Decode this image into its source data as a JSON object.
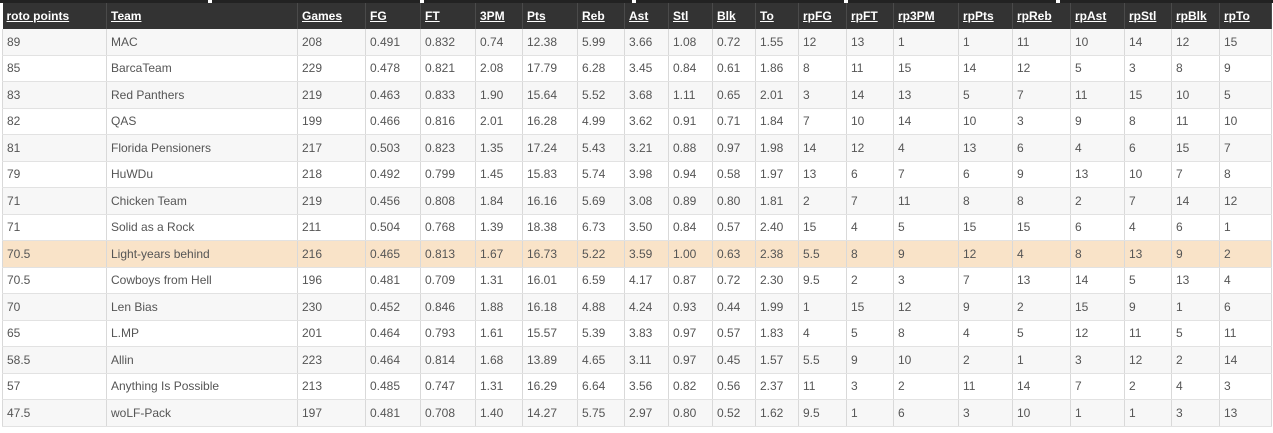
{
  "columns": [
    "roto points",
    "Team",
    "Games",
    "FG",
    "FT",
    "3PM",
    "Pts",
    "Reb",
    "Ast",
    "Stl",
    "Blk",
    "To",
    "rpFG",
    "rpFT",
    "rp3PM",
    "rpPts",
    "rpReb",
    "rpAst",
    "rpStl",
    "rpBlk",
    "rpTo"
  ],
  "rows": [
    [
      "89",
      "MAC",
      "208",
      "0.491",
      "0.832",
      "0.74",
      "12.38",
      "5.99",
      "3.66",
      "1.08",
      "0.72",
      "1.55",
      "12",
      "13",
      "1",
      "1",
      "11",
      "10",
      "14",
      "12",
      "15"
    ],
    [
      "85",
      "BarcaTeam",
      "229",
      "0.478",
      "0.821",
      "2.08",
      "17.79",
      "6.28",
      "3.45",
      "0.84",
      "0.61",
      "1.86",
      "8",
      "11",
      "15",
      "14",
      "12",
      "5",
      "3",
      "8",
      "9"
    ],
    [
      "83",
      "Red Panthers",
      "219",
      "0.463",
      "0.833",
      "1.90",
      "15.64",
      "5.52",
      "3.68",
      "1.11",
      "0.65",
      "2.01",
      "3",
      "14",
      "13",
      "5",
      "7",
      "11",
      "15",
      "10",
      "5"
    ],
    [
      "82",
      "QAS",
      "199",
      "0.466",
      "0.816",
      "2.01",
      "16.28",
      "4.99",
      "3.62",
      "0.91",
      "0.71",
      "1.84",
      "7",
      "10",
      "14",
      "10",
      "3",
      "9",
      "8",
      "11",
      "10"
    ],
    [
      "81",
      "Florida Pensioners",
      "217",
      "0.503",
      "0.823",
      "1.35",
      "17.24",
      "5.43",
      "3.21",
      "0.88",
      "0.97",
      "1.98",
      "14",
      "12",
      "4",
      "13",
      "6",
      "4",
      "6",
      "15",
      "7"
    ],
    [
      "79",
      "HuWDu",
      "218",
      "0.492",
      "0.799",
      "1.45",
      "15.83",
      "5.74",
      "3.98",
      "0.94",
      "0.58",
      "1.97",
      "13",
      "6",
      "7",
      "6",
      "9",
      "13",
      "10",
      "7",
      "8"
    ],
    [
      "71",
      "Chicken Team",
      "219",
      "0.456",
      "0.808",
      "1.84",
      "16.16",
      "5.69",
      "3.08",
      "0.89",
      "0.80",
      "1.81",
      "2",
      "7",
      "11",
      "8",
      "8",
      "2",
      "7",
      "14",
      "12"
    ],
    [
      "71",
      "Solid as a Rock",
      "211",
      "0.504",
      "0.768",
      "1.39",
      "18.38",
      "6.73",
      "3.50",
      "0.84",
      "0.57",
      "2.40",
      "15",
      "4",
      "5",
      "15",
      "15",
      "6",
      "4",
      "6",
      "1"
    ],
    [
      "70.5",
      "Light-years behind",
      "216",
      "0.465",
      "0.813",
      "1.67",
      "16.73",
      "5.22",
      "3.59",
      "1.00",
      "0.63",
      "2.38",
      "5.5",
      "8",
      "9",
      "12",
      "4",
      "8",
      "13",
      "9",
      "2"
    ],
    [
      "70.5",
      "Cowboys from Hell",
      "196",
      "0.481",
      "0.709",
      "1.31",
      "16.01",
      "6.59",
      "4.17",
      "0.87",
      "0.72",
      "2.30",
      "9.5",
      "2",
      "3",
      "7",
      "13",
      "14",
      "5",
      "13",
      "4"
    ],
    [
      "70",
      "Len Bias",
      "230",
      "0.452",
      "0.846",
      "1.88",
      "16.18",
      "4.88",
      "4.24",
      "0.93",
      "0.44",
      "1.99",
      "1",
      "15",
      "12",
      "9",
      "2",
      "15",
      "9",
      "1",
      "6"
    ],
    [
      "65",
      "L.MP",
      "201",
      "0.464",
      "0.793",
      "1.61",
      "15.57",
      "5.39",
      "3.83",
      "0.97",
      "0.57",
      "1.83",
      "4",
      "5",
      "8",
      "4",
      "5",
      "12",
      "11",
      "5",
      "11"
    ],
    [
      "58.5",
      "Allin",
      "223",
      "0.464",
      "0.814",
      "1.68",
      "13.89",
      "4.65",
      "3.11",
      "0.97",
      "0.45",
      "1.57",
      "5.5",
      "9",
      "10",
      "2",
      "1",
      "3",
      "12",
      "2",
      "14"
    ],
    [
      "57",
      "Anything Is Possible",
      "213",
      "0.485",
      "0.747",
      "1.31",
      "16.29",
      "6.64",
      "3.56",
      "0.82",
      "0.56",
      "2.37",
      "11",
      "3",
      "2",
      "11",
      "14",
      "7",
      "2",
      "4",
      "3"
    ],
    [
      "47.5",
      "woLF-Pack",
      "197",
      "0.481",
      "0.708",
      "1.40",
      "14.27",
      "5.75",
      "2.97",
      "0.80",
      "0.52",
      "1.62",
      "9.5",
      "1",
      "6",
      "3",
      "10",
      "1",
      "1",
      "3",
      "13"
    ]
  ],
  "highlighted_row_index": 8,
  "colors": {
    "header_bg": "#333333",
    "header_text": "#ffffff",
    "highlight_bg": "#f9e3c8",
    "stripe_bg": "#f7f7f7"
  }
}
